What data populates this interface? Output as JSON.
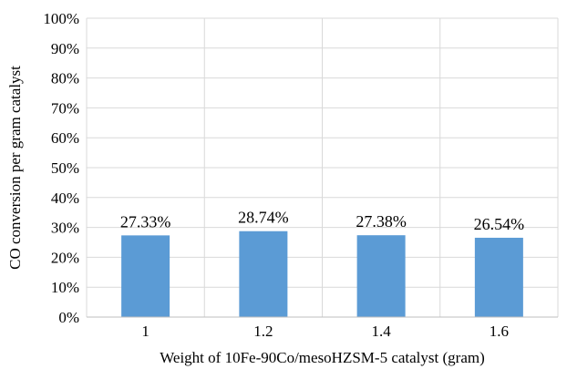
{
  "chart_data": {
    "type": "bar",
    "categories": [
      "1",
      "1.2",
      "1.4",
      "1.6"
    ],
    "values": [
      27.33,
      28.74,
      27.38,
      26.54
    ],
    "data_labels": [
      "27.33%",
      "28.74%",
      "27.38%",
      "26.54%"
    ],
    "xlabel": "Weight of 10Fe-90Co/mesoHZSM-5 catalyst (gram)",
    "ylabel": "CO conversion per gram catalyst",
    "ylim": [
      0,
      100
    ],
    "y_ticks": [
      0,
      10,
      20,
      30,
      40,
      50,
      60,
      70,
      80,
      90,
      100
    ],
    "y_tick_labels": [
      "0%",
      "10%",
      "20%",
      "30%",
      "40%",
      "50%",
      "60%",
      "70%",
      "80%",
      "90%",
      "100%"
    ],
    "grid": true,
    "legend": "none",
    "bar_color": "#5b9bd5",
    "grid_color": "#d9d9d9"
  }
}
